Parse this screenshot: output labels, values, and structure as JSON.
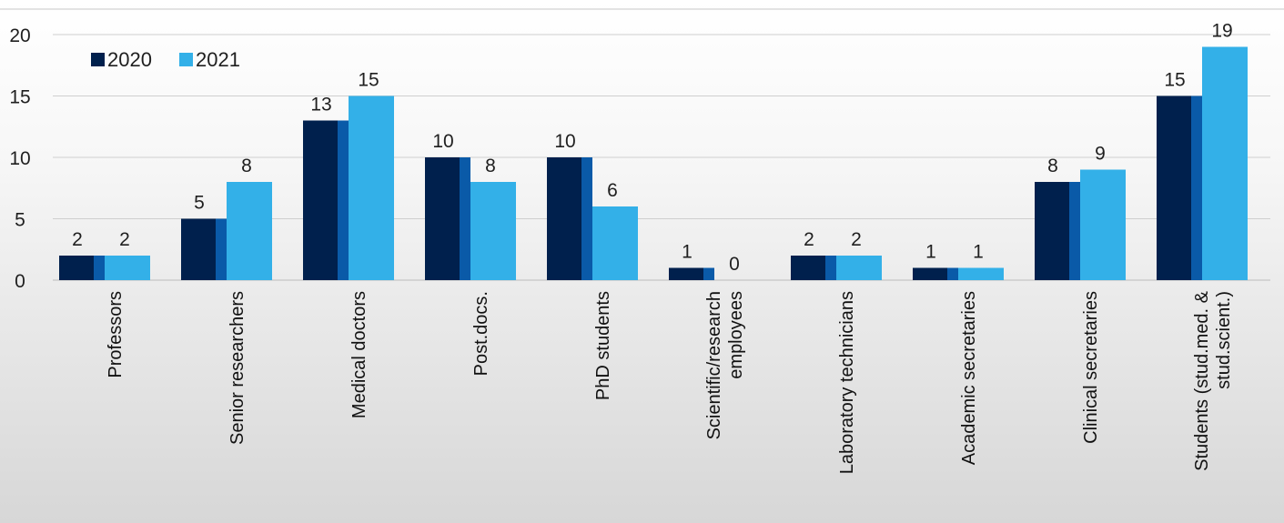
{
  "chart_data": {
    "type": "bar",
    "title": "",
    "xlabel": "",
    "ylabel": "",
    "categories": [
      [
        "Professors"
      ],
      [
        "Senior researchers"
      ],
      [
        "Medical doctors"
      ],
      [
        "Post.docs."
      ],
      [
        "PhD students"
      ],
      [
        "Scientific/research",
        "employees"
      ],
      [
        "Laboratory technicians"
      ],
      [
        "Academic secretaries"
      ],
      [
        "Clinical secretaries"
      ],
      [
        "Students (stud.med. &",
        "stud.scient.)"
      ]
    ],
    "series": [
      {
        "name": "2020",
        "values": [
          2,
          5,
          13,
          10,
          10,
          1,
          2,
          1,
          8,
          15
        ],
        "color": "#00204d",
        "accent": "#0a5aa8"
      },
      {
        "name": "2021",
        "values": [
          2,
          8,
          15,
          8,
          6,
          0,
          2,
          1,
          9,
          19
        ],
        "color": "#33b0e8",
        "accent": "#33b0e8"
      }
    ],
    "ylim": [
      0,
      20
    ],
    "yticks": [
      0,
      5,
      10,
      15,
      20
    ],
    "grid": true,
    "legend_position": "top-left",
    "data_labels": true
  }
}
